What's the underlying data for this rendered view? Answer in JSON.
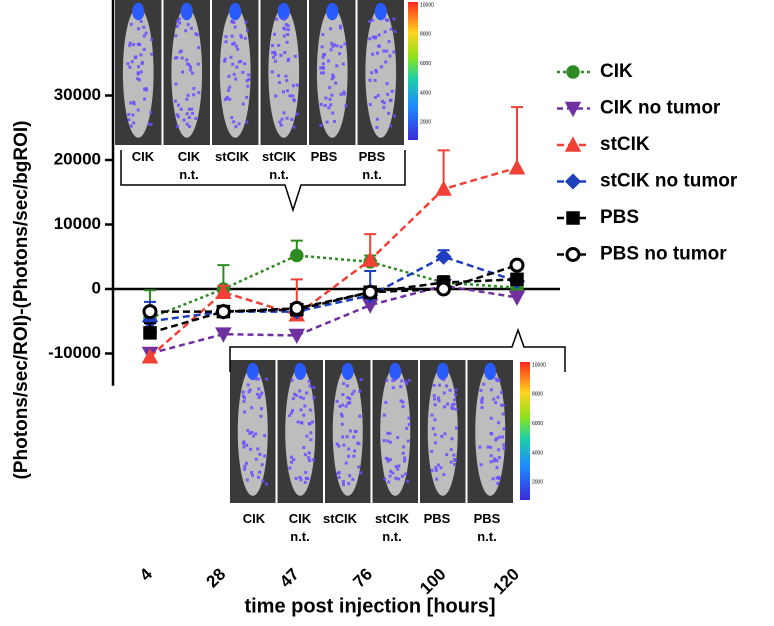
{
  "chart_data": {
    "type": "line",
    "y_label": "(Photons/sec/ROI)-(Photons/sec/bgROI)",
    "x_label": "time post injection [hours]",
    "categories": [
      "4",
      "28",
      "47",
      "76",
      "100",
      "120"
    ],
    "ylim": [
      -15000,
      45000
    ],
    "yticks": [
      -10000,
      0,
      10000,
      20000,
      30000
    ],
    "series": [
      {
        "name": "CIK",
        "color": "#2e8b22",
        "marker": "circle",
        "dash": "3,3",
        "values": [
          -4500,
          0,
          5200,
          4200,
          1000,
          200
        ],
        "errors": [
          4300,
          3700,
          2300,
          1000,
          null,
          null
        ]
      },
      {
        "name": "CIK no tumor",
        "color": "#7030a0",
        "marker": "triangle-down",
        "dash": "6,4",
        "values": [
          -10000,
          -7000,
          -7200,
          -2500,
          500,
          -1300
        ],
        "errors": [
          null,
          null,
          null,
          null,
          null,
          null
        ]
      },
      {
        "name": "stCIK",
        "color": "#ef4136",
        "marker": "triangle-up",
        "dash": "7,4",
        "values": [
          -10500,
          -500,
          -4000,
          4500,
          15500,
          18800
        ],
        "errors": [
          null,
          1000,
          5500,
          4000,
          6000,
          9400
        ]
      },
      {
        "name": "stCIK no tumor",
        "color": "#1f3fbf",
        "marker": "diamond",
        "dash": "7,4",
        "values": [
          -5000,
          -3500,
          -3500,
          -1000,
          5000,
          1200
        ],
        "errors": [
          3000,
          null,
          null,
          3800,
          1000,
          null
        ]
      },
      {
        "name": "PBS",
        "color": "#000000",
        "marker": "square",
        "dash": "7,4",
        "values": [
          -6800,
          -3500,
          -3200,
          -500,
          1000,
          1500
        ],
        "errors": [
          1500,
          null,
          null,
          null,
          1000,
          null
        ]
      },
      {
        "name": "PBS no tumor",
        "color": "#000000",
        "marker": "open-circle",
        "dash": "7,4",
        "values": [
          -3500,
          -3500,
          -3000,
          -500,
          0,
          3700
        ],
        "errors": [
          null,
          null,
          null,
          null,
          null,
          null
        ]
      }
    ],
    "insets": [
      {
        "labels": [
          "CIK",
          "CIK n.t.",
          "stCIK",
          "stCIK n.t.",
          "PBS",
          "PBS n.t."
        ],
        "colorbar_ticks": [
          10000,
          8000,
          6000,
          4000,
          2000
        ]
      },
      {
        "labels": [
          "CIK",
          "CIK n.t.",
          "stCIK",
          "stCIK n.t.",
          "PBS",
          "PBS n.t."
        ],
        "colorbar_ticks": [
          10000,
          8000,
          6000,
          4000,
          2000
        ]
      }
    ]
  }
}
